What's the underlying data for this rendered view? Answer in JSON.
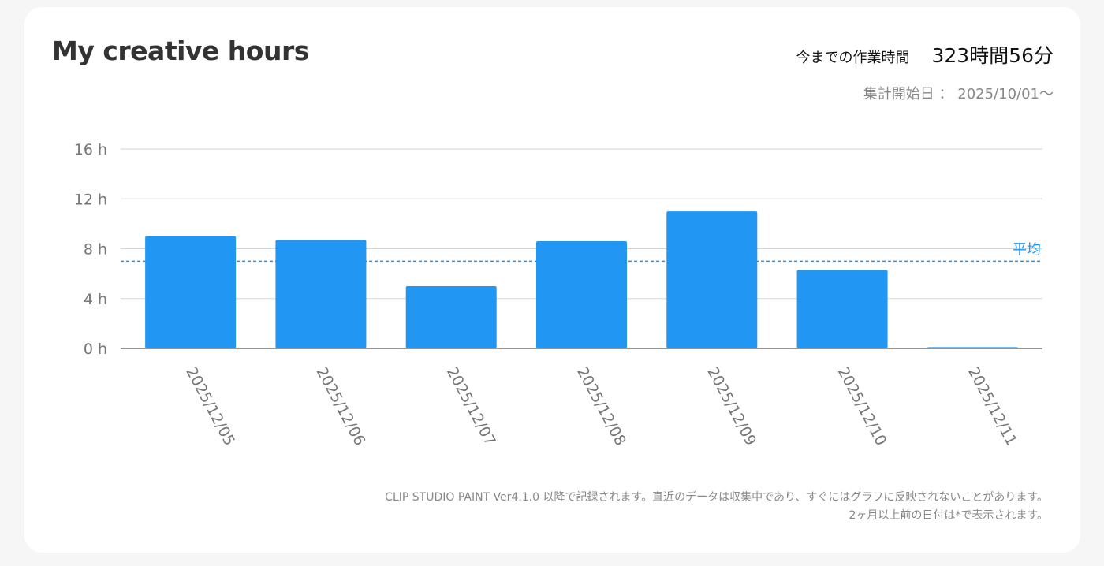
{
  "title": "My creative hours",
  "total": {
    "label": "今までの作業時間",
    "value": "323時間56分"
  },
  "since": "集計開始日 ： 2025/10/01〜",
  "footnote": {
    "line1": "CLIP STUDIO PAINT Ver4.1.0 以降で記録されます。直近のデータは収集中であり、すぐにはグラフに反映されないことがあります。",
    "line2": "2ヶ月以上前の日付は*で表示されます。"
  },
  "colors": {
    "bar": "#2196f3",
    "average": "#2196f3",
    "grid": "#d6d6d6",
    "axis": "#555555",
    "tick_text": "#777777"
  },
  "chart_data": {
    "type": "bar",
    "categories": [
      "2025/12/05",
      "2025/12/06",
      "2025/12/07",
      "2025/12/08",
      "2025/12/09",
      "2025/12/10",
      "2025/12/11"
    ],
    "values": [
      9.0,
      8.7,
      5.0,
      8.6,
      11.0,
      6.3,
      0.1
    ],
    "unit": "h",
    "ylim": [
      0,
      16
    ],
    "yticks": [
      0,
      4,
      8,
      12,
      16
    ],
    "ytick_labels": [
      "0 h",
      "4 h",
      "8 h",
      "12 h",
      "16 h"
    ],
    "average": 7.0,
    "average_label": "平均",
    "grid": true
  }
}
